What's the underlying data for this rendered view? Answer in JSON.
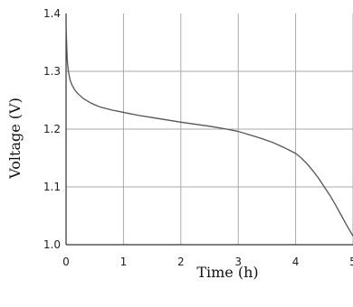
{
  "chart_data": {
    "type": "line",
    "title": "",
    "xlabel": "Time (h)",
    "ylabel": "Voltage (V)",
    "xlim": [
      0,
      5
    ],
    "ylim": [
      1.0,
      1.4
    ],
    "xticks": [
      0,
      1,
      2,
      3,
      4,
      5
    ],
    "xtick_labels": [
      "0",
      "1",
      "2",
      "3",
      "4",
      "5"
    ],
    "yticks": [
      1.0,
      1.1,
      1.2,
      1.3,
      1.4
    ],
    "ytick_labels": [
      "1.0",
      "1.1",
      "1.2",
      "1.3",
      "1.4"
    ],
    "grid": true,
    "legend": "none",
    "series": [
      {
        "color": "#555555",
        "x": [
          0.0,
          0.01,
          0.02,
          0.04,
          0.07,
          0.1,
          0.15,
          0.2,
          0.3,
          0.4,
          0.5,
          0.6,
          0.8,
          1.0,
          1.25,
          1.5,
          2.0,
          2.5,
          2.8,
          3.0,
          3.2,
          3.4,
          3.6,
          3.8,
          4.0,
          4.1,
          4.2,
          4.3,
          4.4,
          4.5,
          4.6,
          4.7,
          4.8,
          4.9,
          5.0
        ],
        "y": [
          1.38,
          1.35,
          1.32,
          1.3,
          1.285,
          1.277,
          1.268,
          1.262,
          1.253,
          1.247,
          1.242,
          1.238,
          1.233,
          1.229,
          1.224,
          1.22,
          1.212,
          1.205,
          1.2,
          1.196,
          1.19,
          1.184,
          1.177,
          1.168,
          1.158,
          1.15,
          1.14,
          1.128,
          1.115,
          1.1,
          1.085,
          1.068,
          1.05,
          1.032,
          1.015
        ]
      }
    ]
  }
}
